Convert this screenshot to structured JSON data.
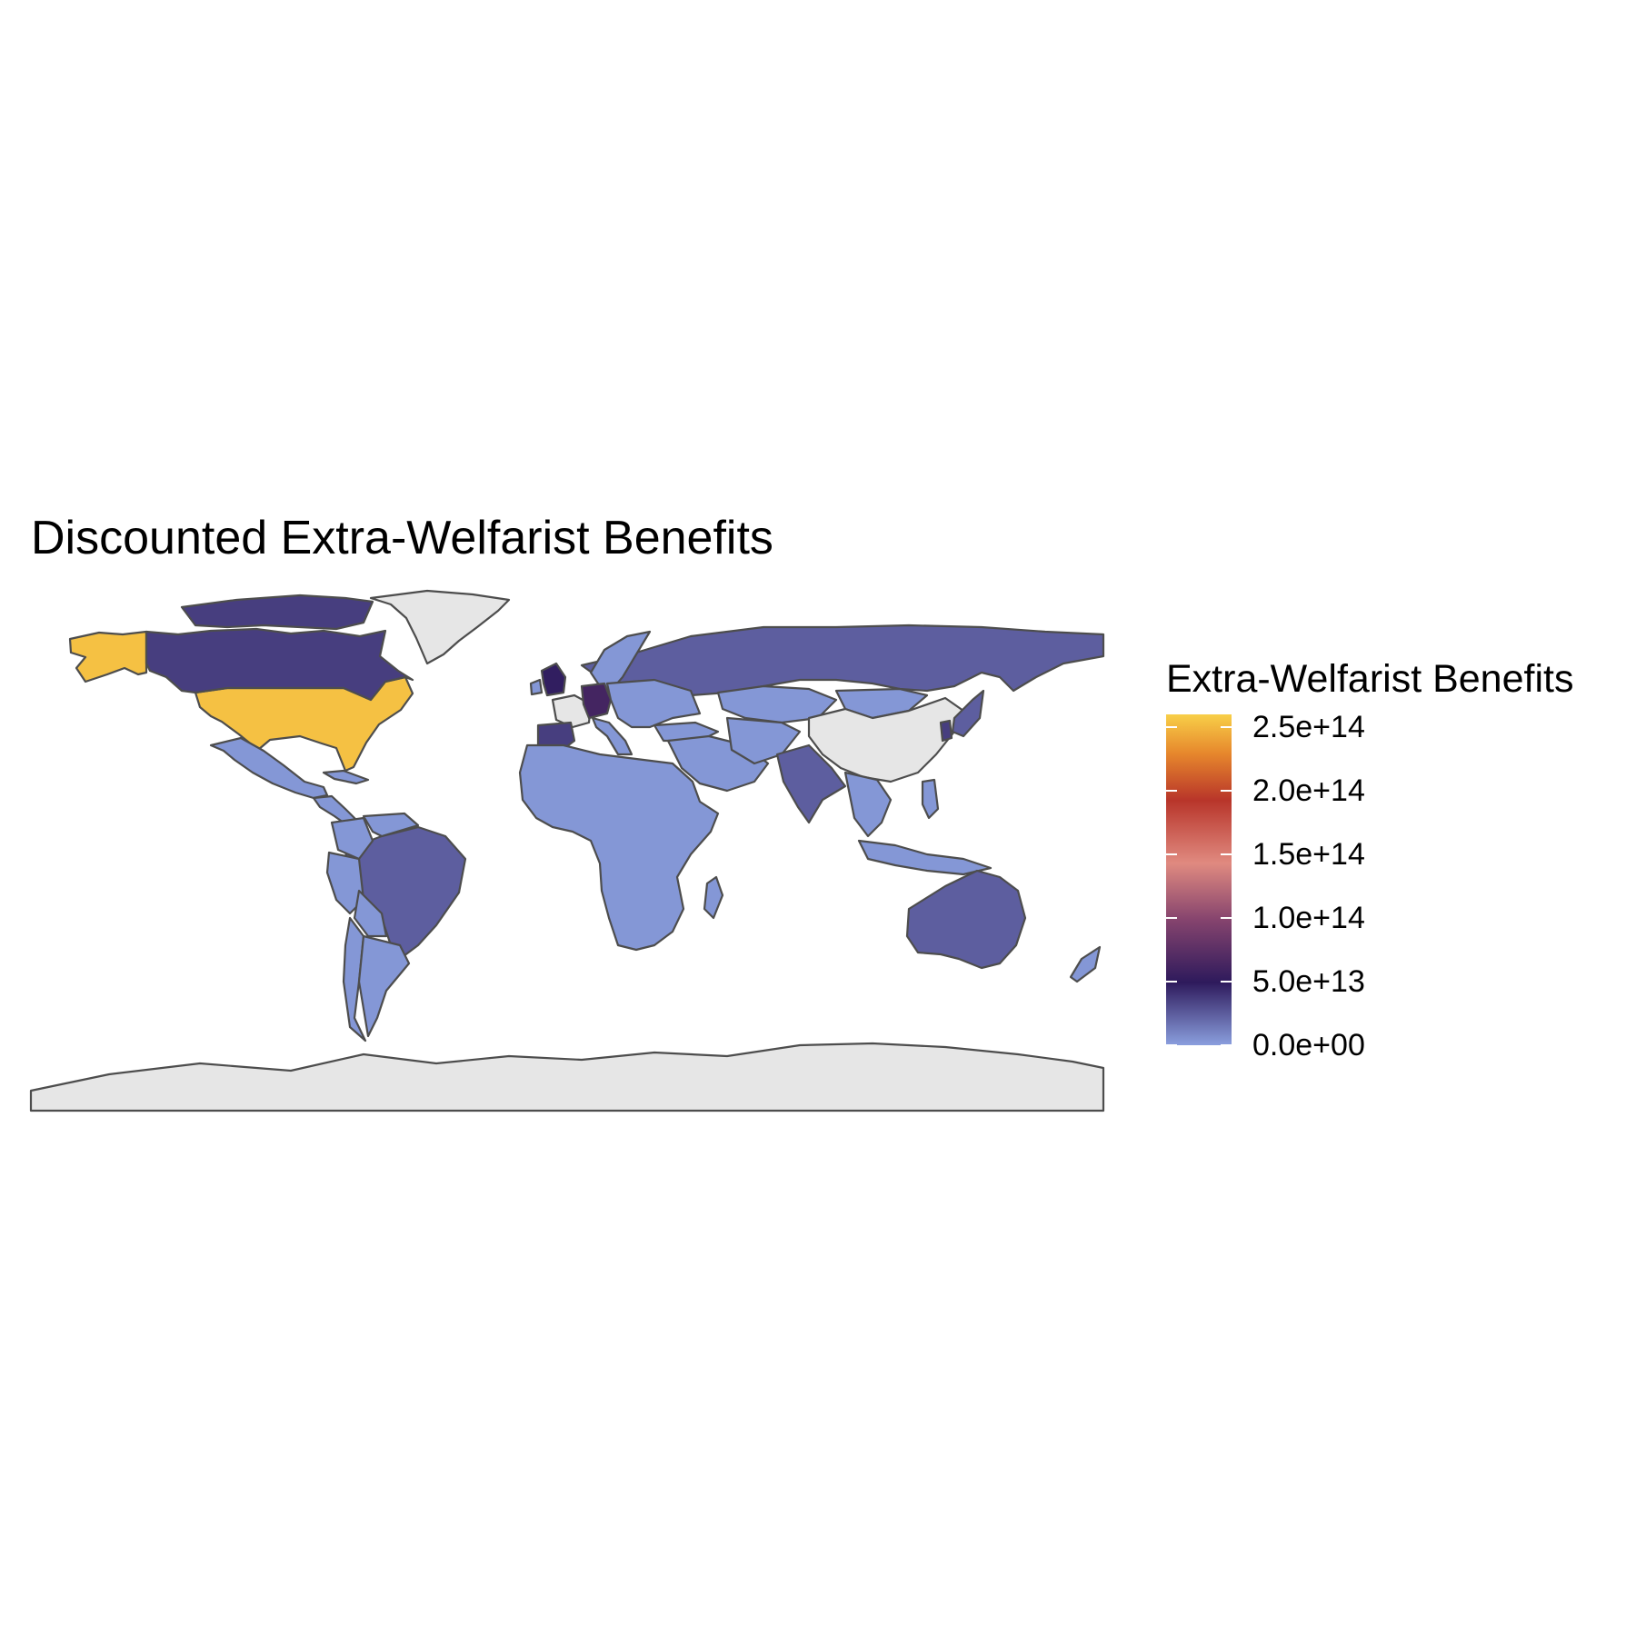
{
  "chart_data": {
    "type": "choropleth-map",
    "title": "Discounted Extra-Welfarist Benefits",
    "legend": {
      "title": "Extra-Welfarist Benefits",
      "position": "right",
      "range": [
        0,
        260000000000000
      ],
      "breaks": [
        {
          "value": 0,
          "label": "0.0e+00"
        },
        {
          "value": 50000000000000,
          "label": "5.0e+13"
        },
        {
          "value": 100000000000000,
          "label": "1.0e+14"
        },
        {
          "value": 150000000000000,
          "label": "1.5e+14"
        },
        {
          "value": 200000000000000,
          "label": "2.0e+14"
        },
        {
          "value": 250000000000000,
          "label": "2.5e+14"
        }
      ]
    },
    "color_stops": [
      {
        "t": 0.0,
        "color": "#8a9fde"
      },
      {
        "t": 0.19,
        "color": "#2e1a5c"
      },
      {
        "t": 0.38,
        "color": "#86446e"
      },
      {
        "t": 0.55,
        "color": "#e08a80"
      },
      {
        "t": 0.74,
        "color": "#b8352a"
      },
      {
        "t": 0.88,
        "color": "#e6862c"
      },
      {
        "t": 1.0,
        "color": "#f8cf48"
      }
    ],
    "na_color": "#e6e6e6",
    "regions": [
      {
        "name": "United States",
        "value": 254000000000000
      },
      {
        "name": "Alaska",
        "value": 254000000000000
      },
      {
        "name": "Canada",
        "value": 36000000000000
      },
      {
        "name": "Canadian Arctic",
        "value": 36000000000000
      },
      {
        "name": "Greenland",
        "value": null
      },
      {
        "name": "Mexico",
        "value": 3000000000000
      },
      {
        "name": "Central America",
        "value": 3000000000000
      },
      {
        "name": "Cuba",
        "value": 3000000000000
      },
      {
        "name": "Brazil",
        "value": 24000000000000
      },
      {
        "name": "Colombia",
        "value": 3000000000000
      },
      {
        "name": "Venezuela",
        "value": 3000000000000
      },
      {
        "name": "Peru",
        "value": 3000000000000
      },
      {
        "name": "Bolivia",
        "value": 3000000000000
      },
      {
        "name": "Chile",
        "value": 3000000000000
      },
      {
        "name": "Argentina",
        "value": 3000000000000
      },
      {
        "name": "Russia",
        "value": 24000000000000
      },
      {
        "name": "Scandinavia",
        "value": 3000000000000
      },
      {
        "name": "United Kingdom",
        "value": 48000000000000
      },
      {
        "name": "Ireland",
        "value": 3000000000000
      },
      {
        "name": "France",
        "value": null
      },
      {
        "name": "Spain",
        "value": 36000000000000
      },
      {
        "name": "Germany",
        "value": 62000000000000
      },
      {
        "name": "Italy",
        "value": 3000000000000
      },
      {
        "name": "Eastern Europe",
        "value": 3000000000000
      },
      {
        "name": "Turkey",
        "value": 3000000000000
      },
      {
        "name": "Africa",
        "value": 3000000000000
      },
      {
        "name": "Madagascar",
        "value": 3000000000000
      },
      {
        "name": "Middle East",
        "value": 3000000000000
      },
      {
        "name": "Kazakhstan",
        "value": 3000000000000
      },
      {
        "name": "Central Asia",
        "value": 3000000000000
      },
      {
        "name": "Mongolia",
        "value": 3000000000000
      },
      {
        "name": "China",
        "value": null
      },
      {
        "name": "India",
        "value": 24000000000000
      },
      {
        "name": "Southeast Asia",
        "value": 3000000000000
      },
      {
        "name": "Indonesia",
        "value": 3000000000000
      },
      {
        "name": "Philippines",
        "value": 3000000000000
      },
      {
        "name": "Japan",
        "value": 24000000000000
      },
      {
        "name": "South Korea",
        "value": 36000000000000
      },
      {
        "name": "Australia",
        "value": 24000000000000
      },
      {
        "name": "New Zealand",
        "value": 3000000000000
      },
      {
        "name": "Antarctica",
        "value": null
      }
    ]
  }
}
